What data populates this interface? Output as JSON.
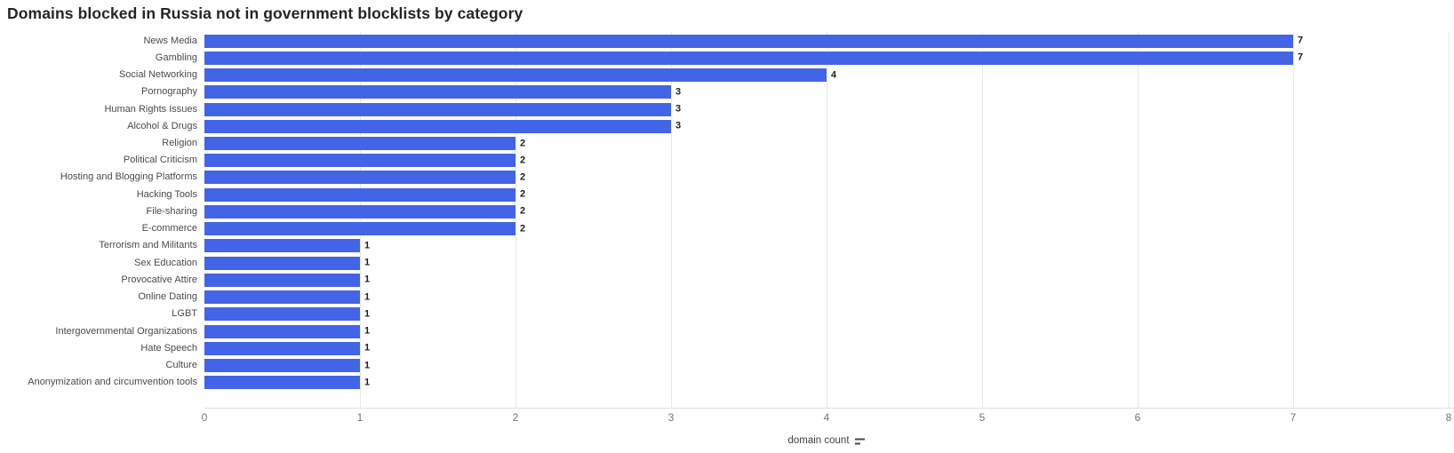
{
  "title": "Domains blocked in Russia not in government blocklists by category",
  "chart_data": {
    "type": "bar",
    "orientation": "horizontal",
    "title": "Domains blocked in Russia not in government blocklists by category",
    "xlabel": "domain count",
    "ylabel": "",
    "xlim": [
      0,
      8
    ],
    "xticks": [
      0,
      1,
      2,
      3,
      4,
      5,
      6,
      7,
      8
    ],
    "grid": "vertical",
    "legend": "none",
    "value_labels": true,
    "categories": [
      "News Media",
      "Gambling",
      "Social Networking",
      "Pornography",
      "Human Rights Issues",
      "Alcohol & Drugs",
      "Religion",
      "Political Criticism",
      "Hosting and Blogging Platforms",
      "Hacking Tools",
      "File-sharing",
      "E-commerce",
      "Terrorism and Militants",
      "Sex Education",
      "Provocative Attire",
      "Online Dating",
      "LGBT",
      "Intergovernmental Organizations",
      "Hate Speech",
      "Culture",
      "Anonymization and circumvention tools"
    ],
    "values": [
      7,
      7,
      4,
      3,
      3,
      3,
      2,
      2,
      2,
      2,
      2,
      2,
      1,
      1,
      1,
      1,
      1,
      1,
      1,
      1,
      1
    ]
  },
  "axis": {
    "xlabel": "domain count",
    "sort_icon": "sort-descending-icon"
  },
  "colors": {
    "bar": "#4264e6",
    "title_text": "#252525",
    "category_text": "#4a4a4a",
    "value_text": "#1e1e1e",
    "tick_text": "#757575",
    "axis_label_text": "#3f3f3f",
    "gridline": "#e9e9e9",
    "baseline": "#e0e0e0",
    "background": "#ffffff"
  }
}
